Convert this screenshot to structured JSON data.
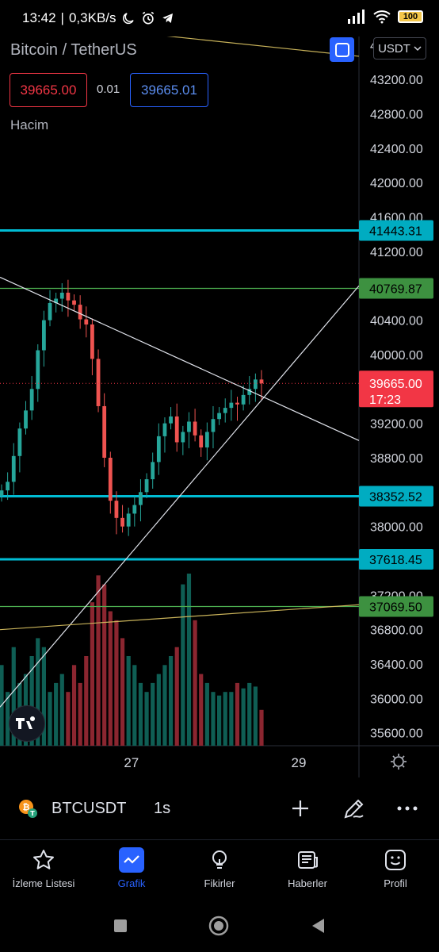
{
  "status_bar": {
    "time": "13:42",
    "speed": "0,3KB/s",
    "battery": "100"
  },
  "header": {
    "symbol_title": "Bitcoin / TetherUS",
    "sell_price": "39665.00",
    "spread": "0.01",
    "buy_price": "39665.01",
    "currency": "USDT",
    "volume_label": "Hacim"
  },
  "chart_data": {
    "type": "candlestick",
    "symbol": "BTCUSDT",
    "y_ticks": [
      43600,
      43200,
      42800,
      42400,
      42000,
      41600,
      41200,
      40800,
      40400,
      40000,
      39600,
      39200,
      38800,
      38400,
      38000,
      37600,
      37200,
      36800,
      36400,
      36000,
      35600
    ],
    "x_ticks": [
      {
        "label": "27",
        "x": 27
      },
      {
        "label": "29",
        "x": 29
      }
    ],
    "ylim": [
      35450,
      43700
    ],
    "xlim": [
      25.43,
      29.72
    ],
    "current_price": {
      "value": 39665.0,
      "label": "39665.00",
      "countdown": "17:23",
      "color": "#f23645"
    },
    "horizontal_levels": [
      {
        "value": 41443.31,
        "label": "41443.31",
        "color": "#00bcd4",
        "style": "thick"
      },
      {
        "value": 40769.87,
        "label": "40769.87",
        "color": "#4caf50",
        "style": "thin"
      },
      {
        "value": 38352.52,
        "label": "38352.52",
        "color": "#00bcd4",
        "style": "thick"
      },
      {
        "value": 37618.45,
        "label": "37618.45",
        "color": "#00bcd4",
        "style": "thick"
      },
      {
        "value": 37069.5,
        "label": "37069.50",
        "color": "#4caf50",
        "style": "thin"
      }
    ],
    "trend_lines": [
      {
        "x1": 25.43,
        "y1": 43910,
        "x2": 29.72,
        "y2": 43470,
        "color": "#c9b35a"
      },
      {
        "x1": 25.43,
        "y1": 40900,
        "x2": 29.72,
        "y2": 39000,
        "color": "#e0e3eb"
      },
      {
        "x1": 25.43,
        "y1": 35900,
        "x2": 29.72,
        "y2": 40800,
        "color": "#e0e3eb"
      },
      {
        "x1": 25.43,
        "y1": 36800,
        "x2": 29.72,
        "y2": 37090,
        "color": "#c9b35a"
      }
    ],
    "series": [
      {
        "name": "price",
        "close": [
          38420,
          38520,
          38820,
          39140,
          39350,
          39600,
          40050,
          40400,
          40600,
          40650,
          40720,
          40630,
          40580,
          40410,
          40350,
          39950,
          39400,
          38800,
          38300,
          38100,
          38000,
          38150,
          38250,
          38400,
          38550,
          38750,
          39050,
          39200,
          39280,
          38980,
          39100,
          39220,
          39060,
          38920,
          39100,
          39250,
          39320,
          39380,
          39440,
          39420,
          39530,
          39600,
          39710,
          39665
        ]
      },
      {
        "name": "volume",
        "values": [
          0.45,
          0.3,
          0.55,
          0.35,
          0.4,
          0.5,
          0.6,
          0.55,
          0.3,
          0.35,
          0.4,
          0.3,
          0.45,
          0.35,
          0.5,
          0.8,
          0.95,
          0.9,
          0.75,
          0.7,
          0.6,
          0.5,
          0.45,
          0.35,
          0.3,
          0.35,
          0.4,
          0.45,
          0.5,
          0.55,
          0.9,
          0.96,
          0.7,
          0.4,
          0.35,
          0.3,
          0.28,
          0.3,
          0.3,
          0.35,
          0.32,
          0.35,
          0.33,
          0.2
        ]
      }
    ]
  },
  "symbol_bar": {
    "symbol": "BTCUSDT",
    "interval": "1s"
  },
  "bottom_nav": {
    "items": [
      {
        "label": "İzleme Listesi"
      },
      {
        "label": "Grafik"
      },
      {
        "label": "Fikirler"
      },
      {
        "label": "Haberler"
      },
      {
        "label": "Profil"
      }
    ]
  }
}
